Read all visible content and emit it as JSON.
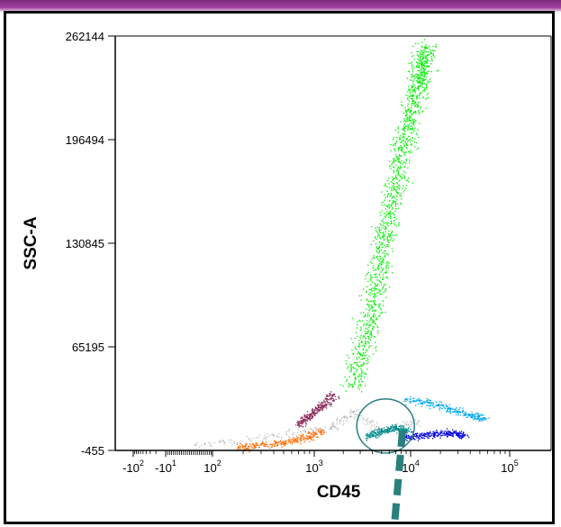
{
  "chart_data": {
    "type": "scatter",
    "title": "",
    "xlabel": "CD45",
    "ylabel": "SSC-A",
    "x_scale": "biexponential",
    "ylim": [
      -455,
      262144
    ],
    "y_ticks": [
      "262144",
      "196494",
      "130845",
      "65195",
      "-455"
    ],
    "x_ticks": [
      {
        "base": "-10",
        "exp": "2"
      },
      {
        "base": "-10",
        "exp": "1"
      },
      {
        "base": "10",
        "exp": "2"
      },
      {
        "base": "10",
        "exp": "3"
      },
      {
        "base": "10",
        "exp": "4"
      },
      {
        "base": "10",
        "exp": "5"
      }
    ],
    "grid": false,
    "legend": "none",
    "series": [
      {
        "color": "#ff6a00",
        "points": [
          {
            "x": 180,
            "y": 1500
          },
          {
            "x": 260,
            "y": 2500
          },
          {
            "x": 420,
            "y": 4000
          },
          {
            "x": 650,
            "y": 6000
          },
          {
            "x": 900,
            "y": 8500
          },
          {
            "x": 1200,
            "y": 12000
          }
        ]
      },
      {
        "color": "#8b2a5b",
        "points": [
          {
            "x": 700,
            "y": 16000
          },
          {
            "x": 900,
            "y": 22000
          },
          {
            "x": 1200,
            "y": 28000
          },
          {
            "x": 1600,
            "y": 35000
          }
        ]
      },
      {
        "color": "#c0c0c0",
        "points": [
          {
            "x": 60,
            "y": 3000
          },
          {
            "x": 400,
            "y": 9000
          },
          {
            "x": 1500,
            "y": 14000
          },
          {
            "x": 2500,
            "y": 24000
          },
          {
            "x": 5000,
            "y": 12000
          },
          {
            "x": 12000,
            "y": 18000
          }
        ]
      },
      {
        "color": "#00ee00",
        "points": [
          {
            "x": 2500,
            "y": 40000
          },
          {
            "x": 4000,
            "y": 90000
          },
          {
            "x": 5500,
            "y": 140000
          },
          {
            "x": 8000,
            "y": 190000
          },
          {
            "x": 12000,
            "y": 230000
          },
          {
            "x": 14000,
            "y": 255000
          }
        ]
      },
      {
        "color": "#00aaee",
        "points": [
          {
            "x": 9000,
            "y": 32000
          },
          {
            "x": 15000,
            "y": 30000
          },
          {
            "x": 25000,
            "y": 26000
          },
          {
            "x": 40000,
            "y": 22000
          },
          {
            "x": 55000,
            "y": 20000
          }
        ]
      },
      {
        "color": "#0000dd",
        "points": [
          {
            "x": 9000,
            "y": 8000
          },
          {
            "x": 15000,
            "y": 10000
          },
          {
            "x": 25000,
            "y": 11000
          },
          {
            "x": 35000,
            "y": 9000
          }
        ]
      },
      {
        "color": "#008b8b",
        "points": [
          {
            "x": 3500,
            "y": 9000
          },
          {
            "x": 5000,
            "y": 12000
          },
          {
            "x": 7000,
            "y": 14000
          },
          {
            "x": 9000,
            "y": 12000
          }
        ]
      }
    ],
    "annotations": [
      {
        "shape": "ellipse",
        "color": "#2a7f7f",
        "center": {
          "x": 5500,
          "y": 15000
        }
      },
      {
        "shape": "dashed-pointer",
        "color": "#2a7f7f"
      }
    ]
  }
}
